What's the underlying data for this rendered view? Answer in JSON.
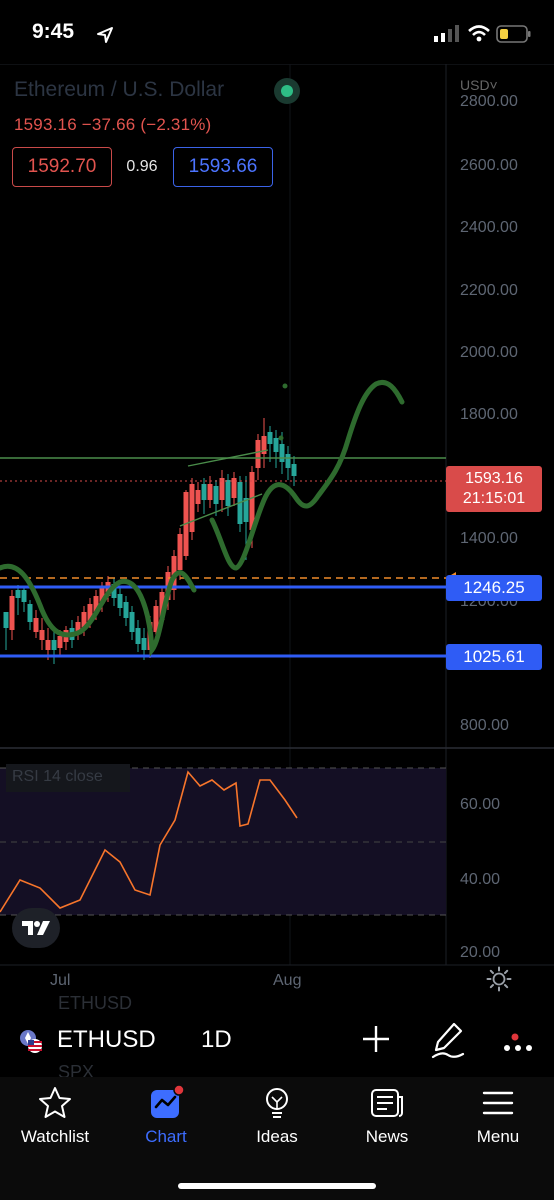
{
  "status_bar": {
    "time": "9:45"
  },
  "chart": {
    "title": "Ethereum / U.S. Dollar",
    "price_line": "1593.16  −37.66 (−2.31%)",
    "bid": "1592.70",
    "spread": "0.96",
    "ask": "1593.66",
    "currency": "USD˅",
    "axis_labels": [
      "2800.00",
      "2600.00",
      "2400.00",
      "2200.00",
      "2000.00",
      "1800.00",
      "1400.00",
      "1200.00",
      "800.00"
    ],
    "current_price": "1593.16",
    "countdown": "21:15:01",
    "level_upper": "1246.25",
    "level_lower": "1025.61",
    "rsi_title": "RSI 14 close",
    "rsi_axis": [
      "60.00",
      "40.00",
      "20.00"
    ],
    "time_labels": [
      "Jul",
      "Aug"
    ],
    "colors": {
      "up": "#26a69a",
      "down": "#ef5350",
      "level": "#2f5cf5",
      "rsi": "#f7752b",
      "drawing": "#2e6b2e"
    }
  },
  "toolbar": {
    "ghost_top": "ETHUSD",
    "ghost_bottom": "SPX",
    "symbol": "ETHUSD",
    "interval": "1D",
    "icons": [
      "flag-icon",
      "plus-icon",
      "draw-icon",
      "more-icon"
    ]
  },
  "tabs": [
    {
      "label": "Watchlist",
      "icon": "star-icon"
    },
    {
      "label": "Chart",
      "icon": "chart-icon",
      "active": true
    },
    {
      "label": "Ideas",
      "icon": "lightbulb-icon"
    },
    {
      "label": "News",
      "icon": "news-icon"
    },
    {
      "label": "Menu",
      "icon": "menu-icon"
    }
  ]
}
